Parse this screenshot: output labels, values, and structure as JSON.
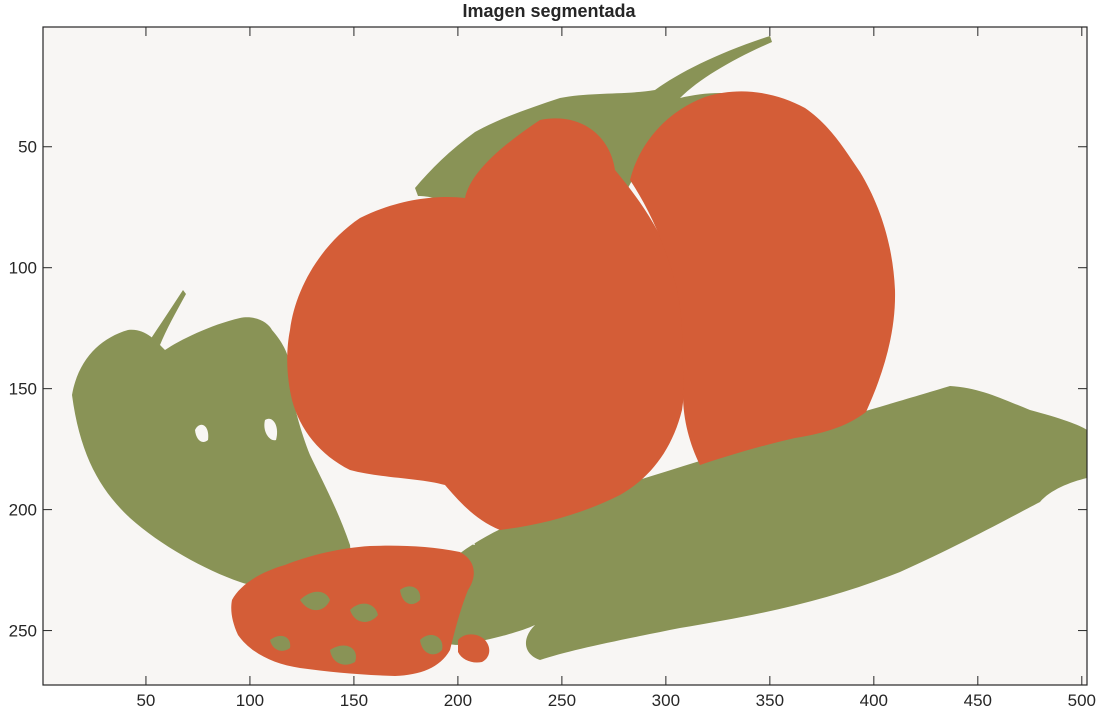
{
  "figure": {
    "title": "Imagen segmentada"
  },
  "axes": {
    "x_ticks": [
      {
        "value": 50,
        "label": "50"
      },
      {
        "value": 100,
        "label": "100"
      },
      {
        "value": 150,
        "label": "150"
      },
      {
        "value": 200,
        "label": "200"
      },
      {
        "value": 250,
        "label": "250"
      },
      {
        "value": 300,
        "label": "300"
      },
      {
        "value": 350,
        "label": "350"
      },
      {
        "value": 400,
        "label": "400"
      },
      {
        "value": 450,
        "label": "450"
      },
      {
        "value": 500,
        "label": "500"
      }
    ],
    "y_ticks": [
      {
        "value": 50,
        "label": "50"
      },
      {
        "value": 100,
        "label": "100"
      },
      {
        "value": 150,
        "label": "150"
      },
      {
        "value": 200,
        "label": "200"
      },
      {
        "value": 250,
        "label": "250"
      }
    ],
    "x_range": [
      0.5,
      502.5
    ],
    "y_range": [
      0.5,
      272.5
    ],
    "y_direction": "reversed"
  },
  "colors": {
    "background": "#f8f6f4",
    "tomato": "#d45d37",
    "green": "#899356",
    "axis": "#262626"
  },
  "segments": [
    {
      "class": "tomato",
      "color": "#d45d37"
    },
    {
      "class": "green",
      "color": "#899356"
    },
    {
      "class": "background",
      "color": "#f8f6f4"
    }
  ]
}
